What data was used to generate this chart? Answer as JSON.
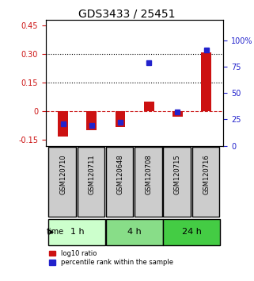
{
  "title": "GDS3433 / 25451",
  "samples": [
    "GSM120710",
    "GSM120711",
    "GSM120648",
    "GSM120708",
    "GSM120715",
    "GSM120716"
  ],
  "time_groups": [
    {
      "label": "1 h",
      "indices": [
        0,
        1
      ],
      "color": "#ccffcc"
    },
    {
      "label": "4 h",
      "indices": [
        2,
        3
      ],
      "color": "#88dd88"
    },
    {
      "label": "24 h",
      "indices": [
        4,
        5
      ],
      "color": "#44cc44"
    }
  ],
  "log10_ratio": [
    -0.13,
    -0.1,
    -0.08,
    0.05,
    -0.03,
    0.31
  ],
  "percentile_rank": [
    0.21,
    0.19,
    0.22,
    0.79,
    0.32,
    0.91
  ],
  "ylim_left": [
    -0.18,
    0.48
  ],
  "ylim_right": [
    0,
    120
  ],
  "yticks_left": [
    -0.15,
    0,
    0.15,
    0.3,
    0.45
  ],
  "yticks_right": [
    0,
    25,
    50,
    75,
    100
  ],
  "ytick_labels_left": [
    "-0.15",
    "0",
    "0.15",
    "0.30",
    "0.45"
  ],
  "ytick_labels_right": [
    "0",
    "25",
    "50",
    "75",
    "100%"
  ],
  "hlines": [
    0.15,
    0.3
  ],
  "bar_width": 0.35,
  "red_color": "#cc1111",
  "blue_color": "#2222cc",
  "zero_line_color": "#cc2222",
  "background_color": "#ffffff",
  "plot_bg_color": "#ffffff"
}
